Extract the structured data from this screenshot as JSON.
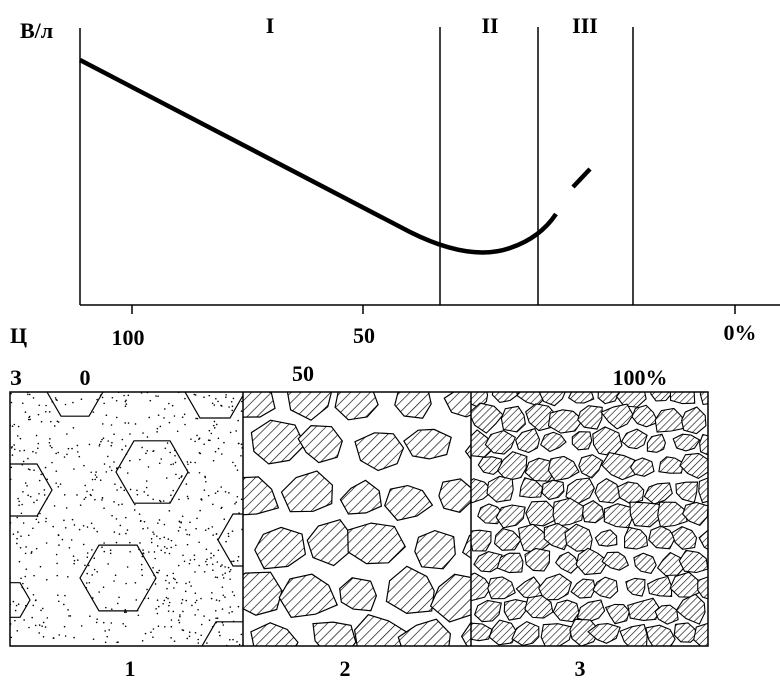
{
  "plot": {
    "y_label": "В/л",
    "zones": [
      "I",
      "II",
      "III"
    ],
    "c_label": "Ц",
    "c_ticks": [
      "100",
      "50",
      "0%"
    ],
    "z_label": "З",
    "z_ticks": [
      "0",
      "50",
      "100%"
    ]
  },
  "panels": [
    "1",
    "2",
    "3"
  ]
}
